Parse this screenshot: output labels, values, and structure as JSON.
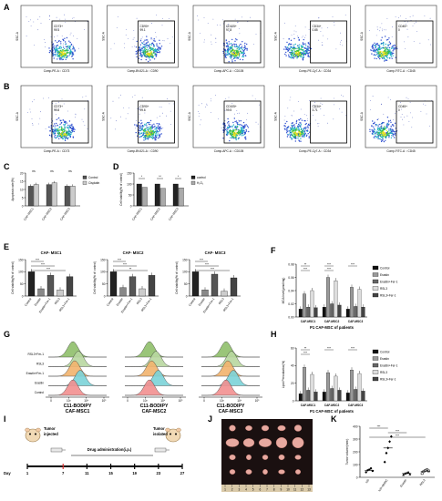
{
  "panel_letters": [
    "A",
    "B",
    "C",
    "D",
    "E",
    "F",
    "G",
    "H",
    "I",
    "J",
    "K"
  ],
  "flow_row_A": [
    {
      "gate": "CD73+",
      "pct": "99.4",
      "xaxis": "Comp-PE-A :: CD73",
      "yaxis": "SSC-A"
    },
    {
      "gate": "CD90+",
      "pct": "99.1",
      "xaxis": "Comp-BV421-A :: CD90",
      "yaxis": "SSC-A"
    },
    {
      "gate": "CD105+",
      "pct": "97.8",
      "xaxis": "Comp-APC-A :: CD105",
      "yaxis": "SSC-A"
    },
    {
      "gate": "CD34+",
      "pct": "0.85",
      "xaxis": "Comp-PE-Cy7-A :: CD34",
      "yaxis": "SSC-A"
    },
    {
      "gate": "CD45+",
      "pct": "0",
      "xaxis": "Comp-FITC-A :: CD45",
      "yaxis": "SSC-A"
    }
  ],
  "flow_row_B": [
    {
      "gate": "CD73+",
      "pct": "99.8",
      "xaxis": "Comp-PE-A :: CD73",
      "yaxis": "SSC-A"
    },
    {
      "gate": "CD90+",
      "pct": "99.6",
      "xaxis": "Comp-BV421-A :: CD90",
      "yaxis": "SSC-A"
    },
    {
      "gate": "CD105+",
      "pct": "99.5",
      "xaxis": "Comp-APC-A :: CD105",
      "yaxis": "SSC-A"
    },
    {
      "gate": "CD34+",
      "pct": "3.71",
      "xaxis": "Comp-PE-Cy7-A :: CD34",
      "yaxis": "SSC-A"
    },
    {
      "gate": "CD45+",
      "pct": "0",
      "xaxis": "Comp-FITC-A :: CD45",
      "yaxis": "SSC-A"
    }
  ],
  "panel_C": {
    "ylabel": "Apoptosis rate(%)",
    "categories": [
      "CAF-MSC1",
      "CAF-MSC2",
      "CAF-MSC3"
    ],
    "legend": [
      "Control",
      "Cisplatin"
    ],
    "control": [
      12,
      13,
      12
    ],
    "cisplatin": [
      13,
      14,
      12
    ],
    "ylim": [
      0,
      20
    ],
    "yticks": [
      "0",
      "5",
      "10",
      "15",
      "20"
    ],
    "sig": [
      "ns",
      "ns",
      "ns"
    ],
    "colors": [
      "#555555",
      "#cccccc"
    ]
  },
  "panel_D": {
    "ylabel": "Cell viability(% of control)",
    "categories": [
      "CAF-MSC1",
      "CAF-MSC2",
      "CAF-MSC3"
    ],
    "legend": [
      "control",
      "H₂O₂"
    ],
    "control": [
      100,
      100,
      100
    ],
    "h2o2": [
      85,
      80,
      82
    ],
    "ylim": [
      0,
      150
    ],
    "yticks": [
      "0",
      "50",
      "100",
      "150"
    ],
    "sig": [
      "*",
      "**",
      "*"
    ],
    "colors": [
      "#222222",
      "#aaaaaa"
    ]
  },
  "panel_E": [
    {
      "title": "CAF- MSC1",
      "sig": [
        "***",
        "***",
        "***"
      ]
    },
    {
      "title": "CAF- MSC2",
      "sig": [
        "***",
        "***",
        "**"
      ]
    },
    {
      "title": "CAF- MSC3",
      "sig": [
        "***",
        "***",
        "***"
      ]
    }
  ],
  "panel_E_common": {
    "ylabel": "Cell viability(% of control)",
    "categories": [
      "Control",
      "Erastin",
      "Erastin+Fer-1",
      "RSL3",
      "RSL3+Fer-1"
    ],
    "values": [
      [
        100,
        30,
        85,
        25,
        80
      ],
      [
        100,
        35,
        80,
        30,
        85
      ],
      [
        100,
        25,
        90,
        20,
        75
      ]
    ],
    "ylim": [
      0,
      150
    ],
    "yticks": [
      "0",
      "50",
      "100",
      "150"
    ]
  },
  "panel_F": {
    "ylabel": "MDA level(μmol/mg)",
    "xlabel": "P1 CAF-MSC of patients",
    "categories": [
      "CAF-MSC1",
      "CAF-MSC2",
      "CAF-MSC3"
    ],
    "legend": [
      "Control",
      "Erastin",
      "Erastin+Fer-1",
      "RSL3",
      "RSL3+Fer-1"
    ],
    "yticks": [
      "0.00",
      "0.02",
      "0.04",
      "0.06",
      "0.08"
    ],
    "ylim": [
      0,
      0.08
    ],
    "values": [
      [
        0.012,
        0.035,
        0.015,
        0.04,
        0.014
      ],
      [
        0.015,
        0.06,
        0.02,
        0.055,
        0.018
      ],
      [
        0.012,
        0.045,
        0.016,
        0.042,
        0.015
      ]
    ],
    "sig": [
      "**",
      "***",
      "***",
      "***",
      "***"
    ],
    "colors": [
      "#111111",
      "#999999",
      "#666666",
      "#dddddd",
      "#444444"
    ]
  },
  "panel_G": {
    "rows": [
      "RSL3+Fer-1",
      "RSL3",
      "Erastin+Fer-1",
      "Erastin",
      "Control"
    ],
    "row_colors": [
      "#8fbf6a",
      "#b8d7a0",
      "#f2b36d",
      "#7bd3d8",
      "#f28f8f"
    ],
    "channel": "C11-BODIPY",
    "titles": [
      "CAF-MSC1",
      "CAF-MSC2",
      "CAF-MSC3"
    ],
    "xticks": [
      "0",
      "10³",
      "10⁴",
      "10⁵"
    ],
    "shifts": [
      0,
      6,
      2,
      8,
      0
    ]
  },
  "panel_H": {
    "ylabel": "Lipid Peroxidation(%)",
    "xlabel": "P1 CAF-MSC of patients",
    "categories": [
      "CAF-MSC1",
      "CAF-MSC2",
      "CAF-MSC3"
    ],
    "legend": [
      "Control",
      "Erastin",
      "Erastin+Fer-1",
      "RSL3",
      "RSL3+Fer-1"
    ],
    "yticks": [
      "0",
      "20",
      "40",
      "60"
    ],
    "ylim": [
      0,
      60
    ],
    "values": [
      [
        8,
        38,
        12,
        30,
        10
      ],
      [
        10,
        32,
        14,
        28,
        12
      ],
      [
        9,
        35,
        13,
        31,
        11
      ]
    ],
    "sig": [
      "**",
      "***",
      "***",
      "***"
    ],
    "colors": [
      "#111111",
      "#999999",
      "#666666",
      "#dddddd",
      "#444444"
    ]
  },
  "panel_I": {
    "tumor_injected": "Tumor\ninjected",
    "tumor_isolated": "Tumor\nisolated",
    "drug_label": "Drug administration(i.p.)",
    "day_label": "Day",
    "days": [
      "1",
      "7",
      "11",
      "15",
      "19",
      "23",
      "27"
    ]
  },
  "panel_J": {
    "ruler": [
      "1",
      "2",
      "3",
      "4",
      "5",
      "6",
      "7",
      "8",
      "9",
      "10",
      "11",
      "12",
      "13"
    ],
    "rows": 4,
    "cols": 5
  },
  "panel_K": {
    "ylabel": "Tumor volume(mm³)",
    "categories": [
      "NS",
      "NS+BMSC",
      "Erastin",
      "RSL3"
    ],
    "yticks": [
      "0",
      "100",
      "200",
      "300",
      "400"
    ],
    "ylim": [
      0,
      400
    ],
    "points": [
      [
        40,
        55,
        60,
        70,
        50
      ],
      [
        120,
        190,
        230,
        280,
        320
      ],
      [
        20,
        30,
        35,
        40,
        25
      ],
      [
        30,
        45,
        55,
        60,
        50
      ]
    ],
    "means": [
      55,
      230,
      30,
      48
    ],
    "sig": [
      "***",
      "***",
      "***"
    ]
  }
}
